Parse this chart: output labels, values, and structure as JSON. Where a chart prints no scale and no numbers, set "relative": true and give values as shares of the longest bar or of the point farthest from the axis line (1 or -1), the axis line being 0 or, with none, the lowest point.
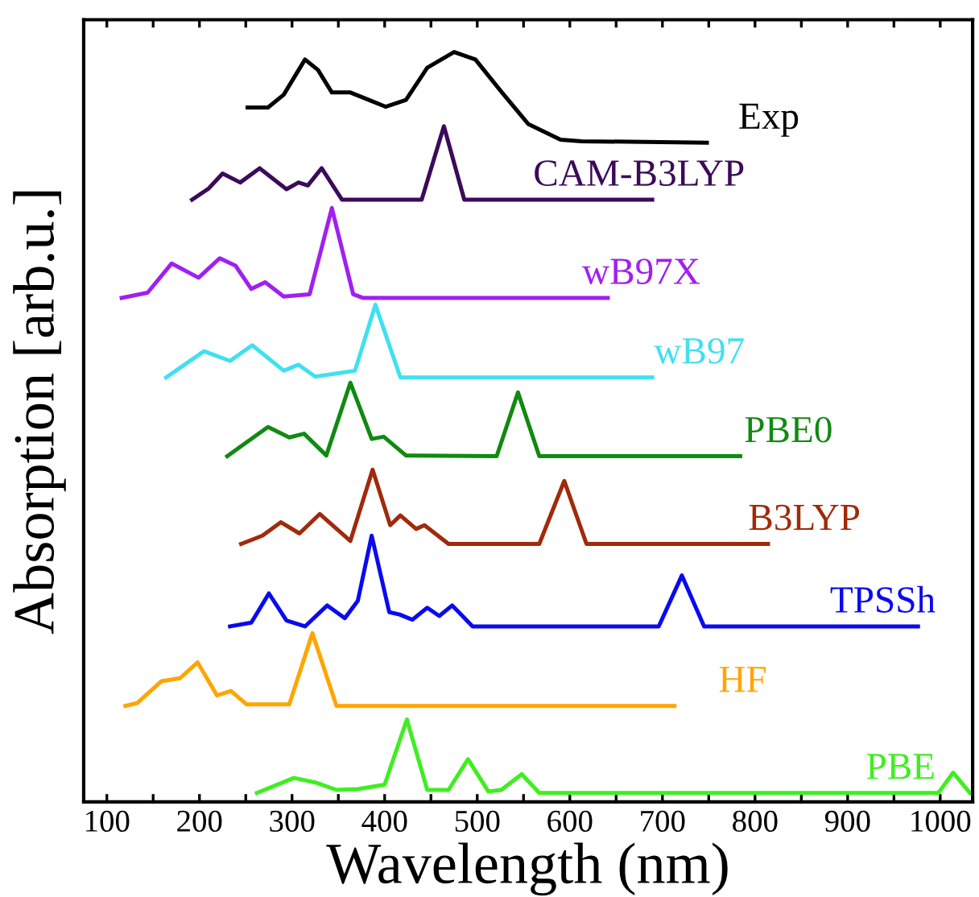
{
  "chart_data": {
    "type": "line",
    "relative": true,
    "xlabel": "Wavelength (nm)",
    "ylabel": "Absorption [arb.u.]",
    "legend": false,
    "grid": false,
    "marker": "none",
    "line_style": "solid",
    "xlim": [
      75,
      1035
    ],
    "xticks": [
      100,
      {
        "value": 150,
        "label": null
      },
      200,
      {
        "value": 250,
        "label": null
      },
      300,
      {
        "value": 350,
        "label": null
      },
      400,
      {
        "value": 450,
        "label": null
      },
      500,
      {
        "value": 550,
        "label": null
      },
      600,
      {
        "value": 650,
        "label": null
      },
      700,
      {
        "value": 750,
        "label": null
      },
      800,
      {
        "value": 850,
        "label": null
      },
      900,
      {
        "value": 950,
        "label": null
      },
      1000
    ],
    "series": [
      {
        "name": "Exp",
        "color": "#000000",
        "x": [
          252,
          274,
          291,
          314,
          328,
          343,
          363,
          383,
          401,
          423,
          446,
          475,
          498,
          526,
          555,
          590,
          613,
          748
        ],
        "values": [
          0.926,
          0.926,
          0.943,
          0.99,
          0.976,
          0.946,
          0.946,
          0.936,
          0.927,
          0.936,
          0.979,
          1.0,
          0.99,
          0.947,
          0.904,
          0.883,
          0.881,
          0.879
        ]
      },
      {
        "name": "CAM-B3LYP",
        "color": "#3c0a5a",
        "x": [
          192,
          210,
          225,
          244,
          265,
          294,
          307,
          317,
          332,
          354,
          440,
          464,
          486,
          689
        ],
        "values": [
          0.803,
          0.818,
          0.838,
          0.826,
          0.845,
          0.817,
          0.826,
          0.822,
          0.845,
          0.803,
          0.803,
          0.901,
          0.803,
          0.803
        ]
      },
      {
        "name": "wB97X",
        "color": "#a020f0",
        "x": [
          116,
          144,
          170,
          199,
          222,
          239,
          256,
          271,
          291,
          319,
          343,
          366,
          377,
          641
        ],
        "values": [
          0.672,
          0.679,
          0.718,
          0.699,
          0.725,
          0.715,
          0.684,
          0.693,
          0.674,
          0.677,
          0.792,
          0.677,
          0.672,
          0.672
        ]
      },
      {
        "name": "wB97",
        "color": "#40e0f0",
        "x": [
          164,
          205,
          233,
          257,
          291,
          307,
          325,
          368,
          390,
          417,
          689
        ],
        "values": [
          0.566,
          0.601,
          0.588,
          0.609,
          0.575,
          0.583,
          0.567,
          0.575,
          0.663,
          0.566,
          0.566
        ]
      },
      {
        "name": "PBE0",
        "color": "#108a10",
        "x": [
          230,
          274,
          297,
          313,
          337,
          363,
          386,
          399,
          423,
          521,
          544,
          567,
          784
        ],
        "values": [
          0.461,
          0.5,
          0.486,
          0.491,
          0.462,
          0.559,
          0.484,
          0.487,
          0.462,
          0.461,
          0.546,
          0.461,
          0.461
        ]
      },
      {
        "name": "B3LYP",
        "color": "#a02a0a",
        "x": [
          245,
          268,
          288,
          308,
          330,
          363,
          387,
          406,
          417,
          434,
          443,
          469,
          567,
          594,
          618,
          814
        ],
        "values": [
          0.344,
          0.355,
          0.373,
          0.358,
          0.384,
          0.348,
          0.443,
          0.369,
          0.382,
          0.364,
          0.369,
          0.344,
          0.344,
          0.428,
          0.344,
          0.344
        ]
      },
      {
        "name": "TPSSh",
        "color": "#0a0af0",
        "x": [
          233,
          256,
          275,
          294,
          314,
          338,
          357,
          371,
          386,
          405,
          416,
          430,
          446,
          459,
          473,
          495,
          696,
          721,
          745,
          976
        ],
        "values": [
          0.234,
          0.239,
          0.278,
          0.242,
          0.234,
          0.262,
          0.245,
          0.268,
          0.355,
          0.253,
          0.25,
          0.243,
          0.259,
          0.248,
          0.262,
          0.234,
          0.234,
          0.302,
          0.234,
          0.234
        ]
      },
      {
        "name": "HF",
        "color": "#ffa500",
        "x": [
          120,
          133,
          159,
          179,
          198,
          219,
          234,
          251,
          297,
          322,
          348,
          713
        ],
        "values": [
          0.128,
          0.132,
          0.161,
          0.165,
          0.186,
          0.142,
          0.148,
          0.13,
          0.13,
          0.225,
          0.128,
          0.128
        ]
      },
      {
        "name": "PBE",
        "color": "#40ee20",
        "x": [
          262,
          302,
          325,
          348,
          371,
          400,
          424,
          446,
          469,
          490,
          512,
          526,
          548,
          567,
          998,
          1014,
          1032
        ],
        "values": [
          0.012,
          0.032,
          0.026,
          0.016,
          0.017,
          0.023,
          0.11,
          0.016,
          0.016,
          0.057,
          0.014,
          0.016,
          0.037,
          0.012,
          0.012,
          0.039,
          0.012
        ]
      }
    ]
  }
}
